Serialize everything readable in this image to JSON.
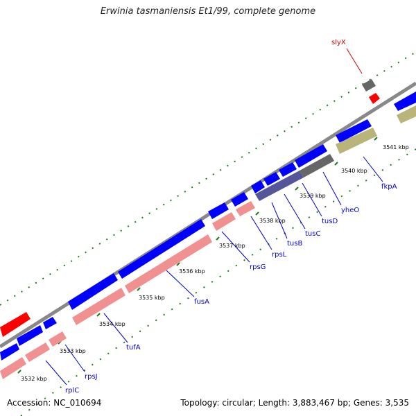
{
  "title": "Erwinia tasmaniensis Et1/99, complete genome",
  "footer": {
    "accession": "Accession: NC_010694",
    "topology": "Topology: circular; Length: 3,883,467 bp; Genes: 3,535"
  },
  "colors": {
    "backbone": "#888888",
    "cds": "#0000ff",
    "rna_like": "#f09090",
    "gray_gene": "#666666",
    "purple_gene": "#555599",
    "olive_gene": "#b8b47a",
    "red_gene": "#ff0000",
    "tick_green": "#1a7a1a",
    "label_blue": "#0000cc",
    "label_red": "#cc0000"
  },
  "scale_ticks": [
    "3532 kbp",
    "3533 kbp",
    "3534 kbp",
    "3535 kbp",
    "3536 kbp",
    "3537 kbp",
    "3538 kbp",
    "3539 kbp",
    "3540 kbp",
    "3541 kbp"
  ],
  "gene_labels": [
    {
      "name": "rplC",
      "color": "blue"
    },
    {
      "name": "rpsJ",
      "color": "blue"
    },
    {
      "name": "tufA",
      "color": "blue"
    },
    {
      "name": "fusA",
      "color": "blue"
    },
    {
      "name": "rpsG",
      "color": "blue"
    },
    {
      "name": "rpsL",
      "color": "blue"
    },
    {
      "name": "tusB",
      "color": "blue"
    },
    {
      "name": "tusC",
      "color": "blue"
    },
    {
      "name": "tusD",
      "color": "blue"
    },
    {
      "name": "yheO",
      "color": "blue"
    },
    {
      "name": "fkpA",
      "color": "blue"
    },
    {
      "name": "slyX",
      "color": "red"
    }
  ]
}
